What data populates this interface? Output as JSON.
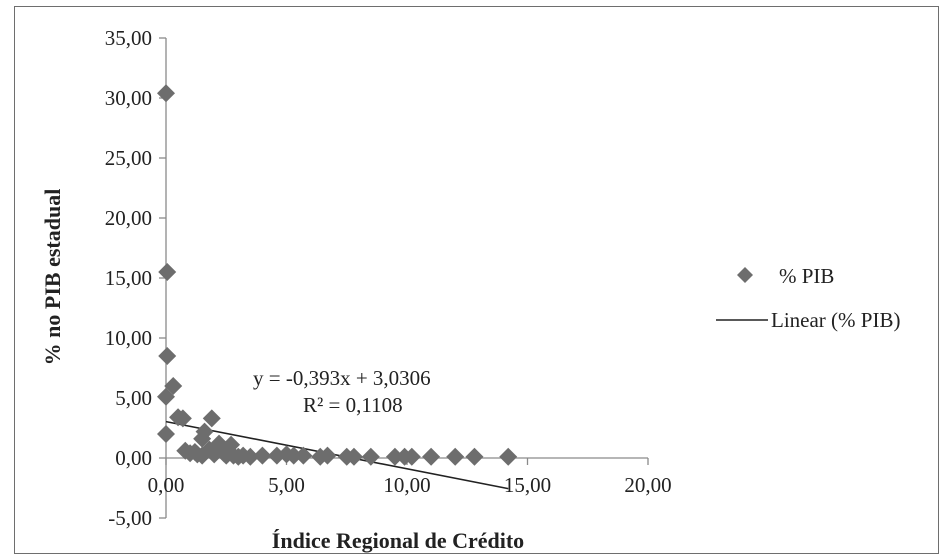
{
  "chart_data": {
    "type": "scatter",
    "xlabel": "Índice Regional de Crédito",
    "ylabel": "% no PIB estadual",
    "xlim": [
      0,
      20
    ],
    "ylim": [
      -5,
      35
    ],
    "x_ticks": [
      "0,00",
      "5,00",
      "10,00",
      "15,00",
      "20,00"
    ],
    "y_ticks": [
      "-5,00",
      "0,00",
      "5,00",
      "10,00",
      "15,00",
      "20,00",
      "25,00",
      "30,00",
      "35,00"
    ],
    "grid": false,
    "legend_position": "right",
    "series": [
      {
        "name": "% PIB",
        "marker": "diamond",
        "color": "#6d6d6d",
        "points": [
          [
            0.0,
            30.4
          ],
          [
            0.05,
            15.5
          ],
          [
            0.05,
            8.5
          ],
          [
            0.0,
            5.1
          ],
          [
            0.3,
            6.0
          ],
          [
            0.0,
            2.0
          ],
          [
            0.5,
            3.4
          ],
          [
            0.7,
            3.3
          ],
          [
            0.8,
            0.6
          ],
          [
            1.0,
            0.4
          ],
          [
            1.2,
            0.5
          ],
          [
            1.3,
            0.3
          ],
          [
            1.5,
            0.2
          ],
          [
            1.5,
            1.6
          ],
          [
            1.6,
            2.2
          ],
          [
            1.8,
            0.7
          ],
          [
            1.9,
            3.3
          ],
          [
            2.0,
            0.3
          ],
          [
            2.2,
            1.2
          ],
          [
            2.4,
            0.4
          ],
          [
            2.5,
            0.2
          ],
          [
            2.7,
            1.1
          ],
          [
            2.8,
            0.2
          ],
          [
            3.0,
            0.1
          ],
          [
            3.2,
            0.2
          ],
          [
            3.5,
            0.1
          ],
          [
            4.0,
            0.2
          ],
          [
            4.6,
            0.2
          ],
          [
            5.0,
            0.3
          ],
          [
            5.3,
            0.2
          ],
          [
            5.7,
            0.2
          ],
          [
            6.4,
            0.1
          ],
          [
            6.7,
            0.2
          ],
          [
            7.5,
            0.1
          ],
          [
            7.8,
            0.1
          ],
          [
            8.5,
            0.1
          ],
          [
            9.5,
            0.1
          ],
          [
            9.9,
            0.1
          ],
          [
            10.2,
            0.1
          ],
          [
            11.0,
            0.1
          ],
          [
            12.0,
            0.1
          ],
          [
            12.8,
            0.1
          ],
          [
            14.2,
            0.1
          ]
        ]
      }
    ],
    "trendline": {
      "name": "Linear (% PIB)",
      "type": "linear",
      "slope": -0.393,
      "intercept": 3.0306,
      "x_range": [
        0,
        14.2
      ],
      "equation_text": "y = -0,393x + 3,0306",
      "r2_text": "R² = 0,1108",
      "color": "#222222"
    }
  }
}
